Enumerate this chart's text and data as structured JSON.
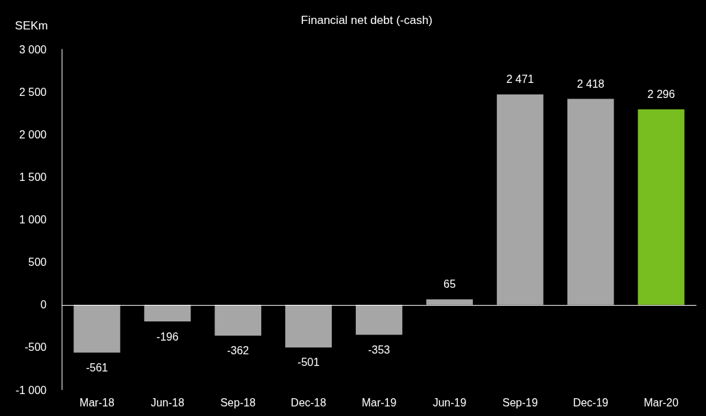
{
  "chart_data": {
    "type": "bar",
    "title": "Financial net debt (-cash)",
    "ylabel": "SEKm",
    "categories": [
      "Mar-18",
      "Jun-18",
      "Sep-18",
      "Dec-18",
      "Mar-19",
      "Jun-19",
      "Sep-19",
      "Dec-19",
      "Mar-20"
    ],
    "values": [
      -561,
      -196,
      -362,
      -501,
      -353,
      65,
      2471,
      2418,
      2296
    ],
    "value_labels": [
      "-561",
      "-196",
      "-362",
      "-501",
      "-353",
      "65",
      "2 471",
      "2 418",
      "2 296"
    ],
    "colors": [
      "#a6a6a6",
      "#a6a6a6",
      "#a6a6a6",
      "#a6a6a6",
      "#a6a6a6",
      "#a6a6a6",
      "#a6a6a6",
      "#a6a6a6",
      "#78be20"
    ],
    "ylim": [
      -1000,
      3000
    ],
    "yticks": [
      {
        "value": -1000,
        "label": "-1 000"
      },
      -500,
      0,
      500,
      {
        "value": 1000,
        "label": "1 000"
      },
      {
        "value": 1500,
        "label": "1 500"
      },
      {
        "value": 2000,
        "label": "2 000"
      },
      {
        "value": 2500,
        "label": "2 500"
      },
      {
        "value": 3000,
        "label": "3 000"
      }
    ],
    "ref_lines": [
      {
        "axis": "y",
        "value": 0,
        "color": "#ffffff"
      }
    ],
    "grid": false
  }
}
